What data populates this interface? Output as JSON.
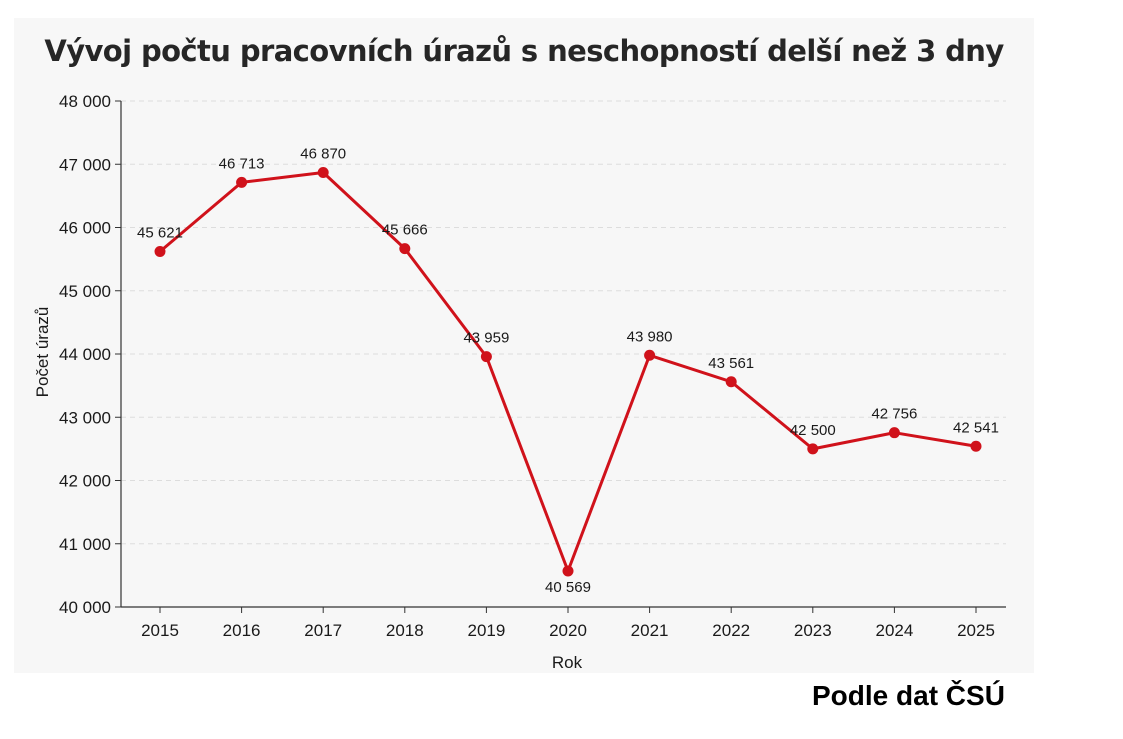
{
  "chart_data": {
    "type": "line",
    "title": "Vývoj počtu pracovních úrazů s neschopností delší než 3 dny",
    "xlabel": "Rok",
    "ylabel": "Počet úrazů",
    "categories": [
      "2015",
      "2016",
      "2017",
      "2018",
      "2019",
      "2020",
      "2021",
      "2022",
      "2023",
      "2024",
      "2025"
    ],
    "series": [
      {
        "values": [
          45621,
          46713,
          46870,
          45666,
          43959,
          40569,
          43980,
          43561,
          42500,
          42756,
          42541
        ]
      }
    ],
    "data_labels": [
      "45 621",
      "46 713",
      "46 870",
      "45 666",
      "43 959",
      "40 569",
      "43 980",
      "43 561",
      "42 500",
      "42 756",
      "42 541"
    ],
    "ylim": [
      40000,
      48000
    ],
    "yticks": [
      40000,
      41000,
      42000,
      43000,
      44000,
      45000,
      46000,
      47000,
      48000
    ],
    "ytick_labels": [
      "40 000",
      "41 000",
      "42 000",
      "43 000",
      "44 000",
      "45 000",
      "46 000",
      "47 000",
      "48 000"
    ],
    "grid": "horizontal-dashed",
    "colors": {
      "line": "#d0121b",
      "grid": "#dddddd",
      "axis": "#333333"
    }
  },
  "footer": {
    "source": "Podle dat ČSÚ"
  }
}
